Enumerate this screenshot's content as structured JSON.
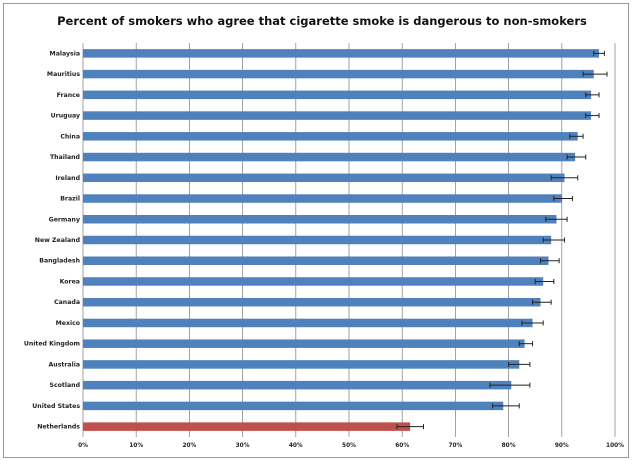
{
  "chart_data": {
    "type": "bar",
    "orientation": "horizontal",
    "title": "Percent of smokers who agree that cigarette smoke is dangerous to non-smokers",
    "xlabel": "",
    "ylabel": "",
    "xlim": [
      0,
      100
    ],
    "x_ticks": [
      "0%",
      "10%",
      "20%",
      "30%",
      "40%",
      "50%",
      "60%",
      "70%",
      "80%",
      "90%",
      "100%"
    ],
    "grid": "vertical",
    "categories": [
      "Malaysia",
      "Mauritius",
      "France",
      "Uruguay",
      "China",
      "Thailand",
      "Ireland",
      "Brazil",
      "Germany",
      "New Zealand",
      "Bangladesh",
      "Korea",
      "Canada",
      "Mexico",
      "United Kingdom",
      "Australia",
      "Scotland",
      "United States",
      "Netherlands"
    ],
    "values": [
      97,
      96,
      95.5,
      95.5,
      93,
      92.5,
      90.5,
      90,
      89,
      88,
      87.5,
      86.5,
      86,
      84.5,
      83,
      82,
      80.5,
      79,
      61.5
    ],
    "error_low": [
      96,
      94,
      94.5,
      94.5,
      91.5,
      91,
      88,
      88.5,
      87,
      86.5,
      86,
      85,
      84.5,
      82.5,
      82,
      80,
      76.5,
      77,
      59
    ],
    "error_high": [
      98,
      98.5,
      97,
      97,
      94,
      94.5,
      93,
      92,
      91,
      90.5,
      89.5,
      88.5,
      88,
      86.5,
      84.5,
      84,
      84,
      82,
      64
    ],
    "colors": {
      "default": "#4f81bd",
      "highlight": "#c0504d",
      "error_bar": "#222222",
      "grid": "#8a8a8a",
      "frame": "#9a9a9a"
    },
    "highlight_category": "Netherlands"
  }
}
